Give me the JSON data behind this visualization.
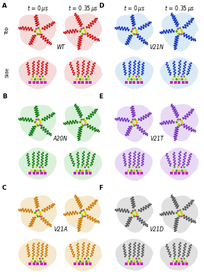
{
  "figure_width": 2.94,
  "figure_height": 4.0,
  "dpi": 100,
  "background_color": "#ffffff",
  "panel_bg_colors": {
    "A": "#f5dada",
    "B": "#daf0da",
    "C": "#f5e8cc",
    "D": "#daeaf5",
    "E": "#e8daf5",
    "F": "#e0e0e0"
  },
  "blob_colors": {
    "A": "#f5dada",
    "B": "#daf0da",
    "C": "#f5e8cc",
    "D": "#daeaf5",
    "E": "#e8daf5",
    "F": "#e8e8e8"
  },
  "helix_colors": {
    "A": "#cc1111",
    "B": "#117711",
    "C": "#cc7700",
    "D": "#1133bb",
    "E": "#7733bb",
    "F": "#555555"
  },
  "variant_names": {
    "A": "WT",
    "B": "A20N",
    "C": "V21A",
    "D": "V21N",
    "E": "V21T",
    "F": "V21D"
  },
  "font_size_panel": 6.5,
  "font_size_time": 5.5,
  "font_size_variant": 5.5,
  "font_size_rowlabel": 5.0
}
